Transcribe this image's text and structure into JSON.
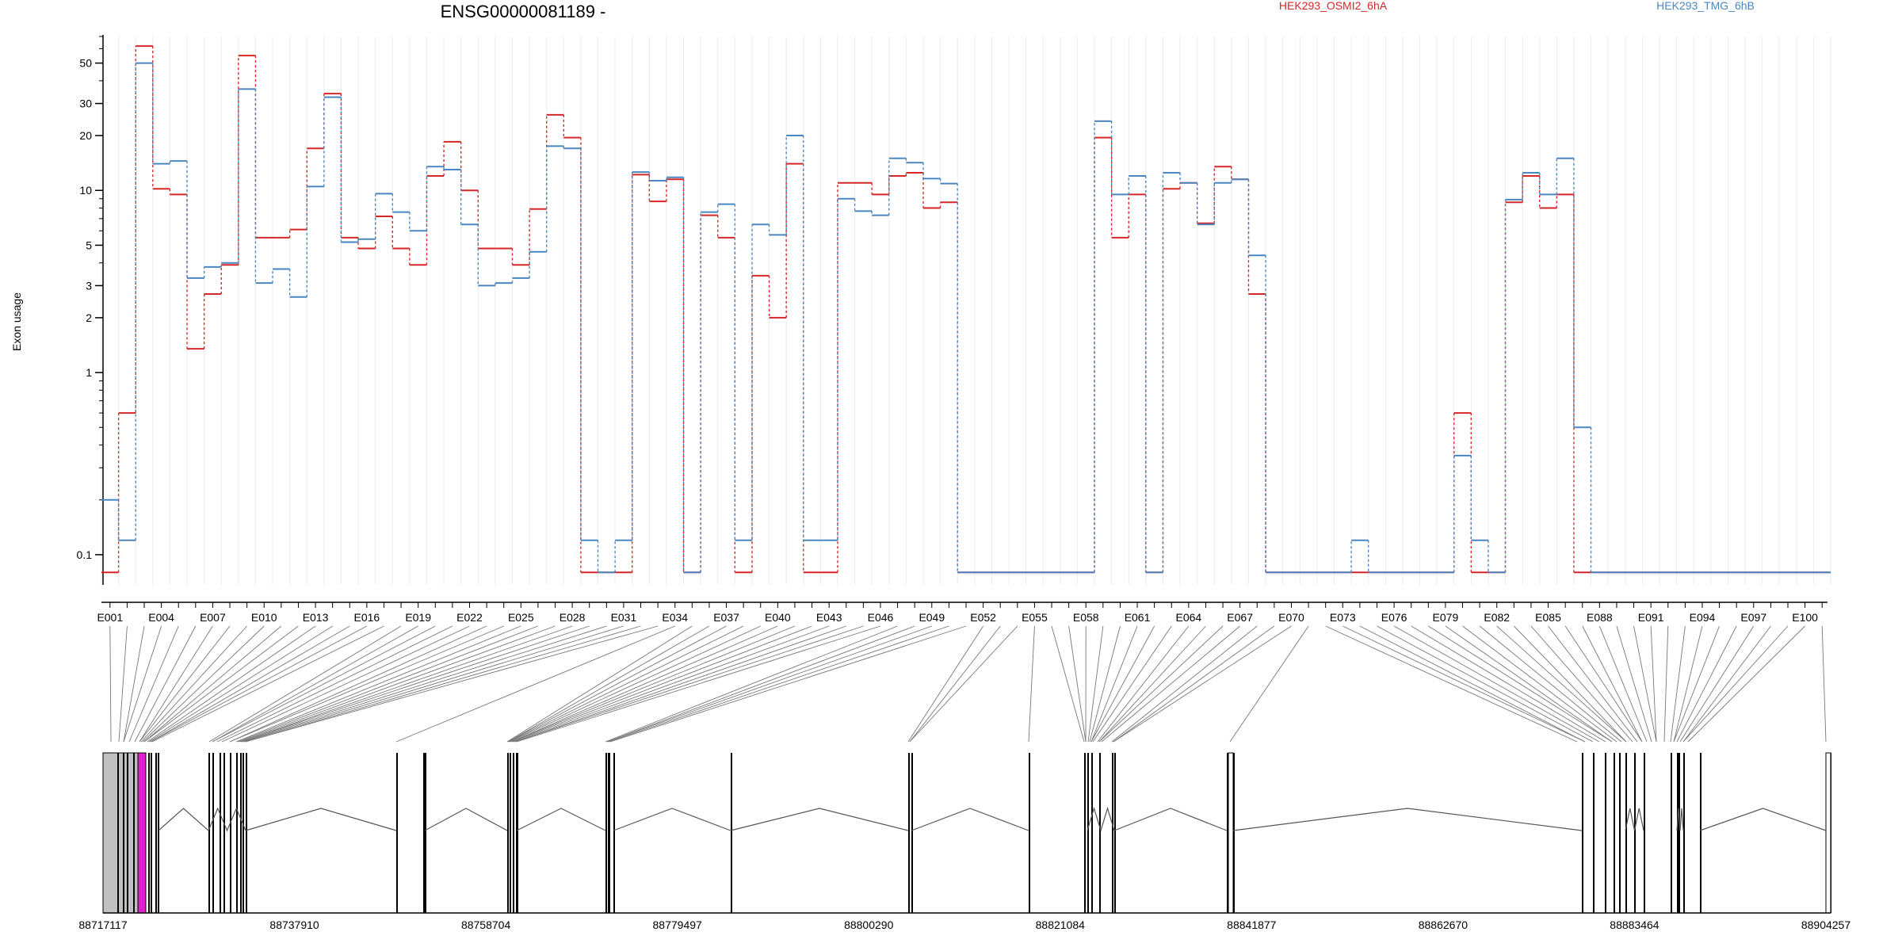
{
  "chart_data": {
    "type": "line",
    "title": "ENSG00000081189 -",
    "xlabel": "",
    "ylabel": "Exon usage",
    "y_scale": "log",
    "yticks": [
      0.1,
      1,
      2,
      3,
      5,
      10,
      20,
      30,
      50
    ],
    "ylim": [
      0.08,
      70
    ],
    "legend_position": "top-right",
    "grid": "vertical lines at each exon",
    "exon_tick_labels": [
      "E001",
      "E004",
      "E007",
      "E010",
      "E013",
      "E016",
      "E019",
      "E022",
      "E025",
      "E028",
      "E031",
      "E034",
      "E037",
      "E040",
      "E043",
      "E046",
      "E049",
      "E052",
      "E055",
      "E058",
      "E061",
      "E064",
      "E067",
      "E070",
      "E073",
      "E076",
      "E079",
      "E082",
      "E085",
      "E088",
      "E091",
      "E094",
      "E097",
      "E100"
    ],
    "n_exons": 101,
    "series": [
      {
        "name": "HEK293_OSMI2_6hA",
        "color": "#d62728",
        "values": [
          0.08,
          0.6,
          62,
          10.2,
          9.5,
          1.35,
          2.7,
          3.9,
          55,
          5.5,
          5.5,
          6.1,
          17,
          34,
          5.5,
          4.8,
          7.2,
          4.8,
          3.9,
          12,
          18.5,
          10,
          4.8,
          4.8,
          3.9,
          7.9,
          26,
          19.5,
          0.08,
          0.08,
          0.08,
          12.2,
          8.7,
          11.5,
          0.08,
          7.3,
          5.5,
          0.08,
          3.4,
          2.0,
          14,
          0.08,
          0.08,
          11,
          11,
          9.5,
          12,
          12.5,
          8,
          8.6,
          0.08,
          0.08,
          0.08,
          0.08,
          0.08,
          0.08,
          0.08,
          0.08,
          19.5,
          5.5,
          9.5,
          0.08,
          10.2,
          11,
          6.6,
          13.5,
          11.5,
          2.7,
          0.08,
          0.08,
          0.08,
          0.08,
          0.08,
          0.08,
          0.08,
          0.08,
          0.08,
          0.08,
          0.08,
          0.6,
          0.08,
          0.08,
          8.6,
          12,
          8,
          9.5,
          0.08,
          0.08,
          0.08,
          0.08,
          0.08,
          0.08,
          0.08,
          0.08,
          0.08,
          0.08,
          0.08,
          0.08,
          0.08,
          0.08,
          0.08
        ]
      },
      {
        "name": "HEK293_TMG_6hB",
        "color": "#4a86c0",
        "values": [
          0.2,
          0.12,
          50,
          14,
          14.5,
          3.3,
          3.8,
          4,
          36,
          3.1,
          3.7,
          2.6,
          10.5,
          32.5,
          5.2,
          5.4,
          9.6,
          7.6,
          6,
          13.5,
          13,
          6.5,
          3,
          3.1,
          3.3,
          4.6,
          17.5,
          17,
          0.12,
          0.08,
          0.12,
          12.6,
          11.3,
          11.8,
          0.08,
          7.6,
          8.4,
          0.12,
          6.5,
          5.7,
          20,
          0.12,
          0.12,
          9,
          7.7,
          7.3,
          15,
          14.2,
          11.6,
          10.9,
          0.08,
          0.08,
          0.08,
          0.08,
          0.08,
          0.08,
          0.08,
          0.08,
          24,
          9.5,
          12,
          0.08,
          12.5,
          11,
          6.5,
          11,
          11.5,
          4.4,
          0.08,
          0.08,
          0.08,
          0.08,
          0.08,
          0.12,
          0.08,
          0.08,
          0.08,
          0.08,
          0.08,
          0.35,
          0.12,
          0.08,
          8.9,
          12.5,
          9.5,
          15,
          0.5,
          0.08,
          0.08,
          0.08,
          0.08,
          0.08,
          0.08,
          0.08,
          0.08,
          0.08,
          0.08,
          0.08,
          0.08,
          0.08,
          0.08
        ]
      }
    ],
    "gene_model": {
      "coordinate_labels": [
        "88717117",
        "88737910",
        "88758704",
        "88779497",
        "88800290",
        "88821084",
        "88841877",
        "88862670",
        "88883464",
        "88904257"
      ],
      "highlighted_exon_color": "#e21fd0"
    }
  }
}
